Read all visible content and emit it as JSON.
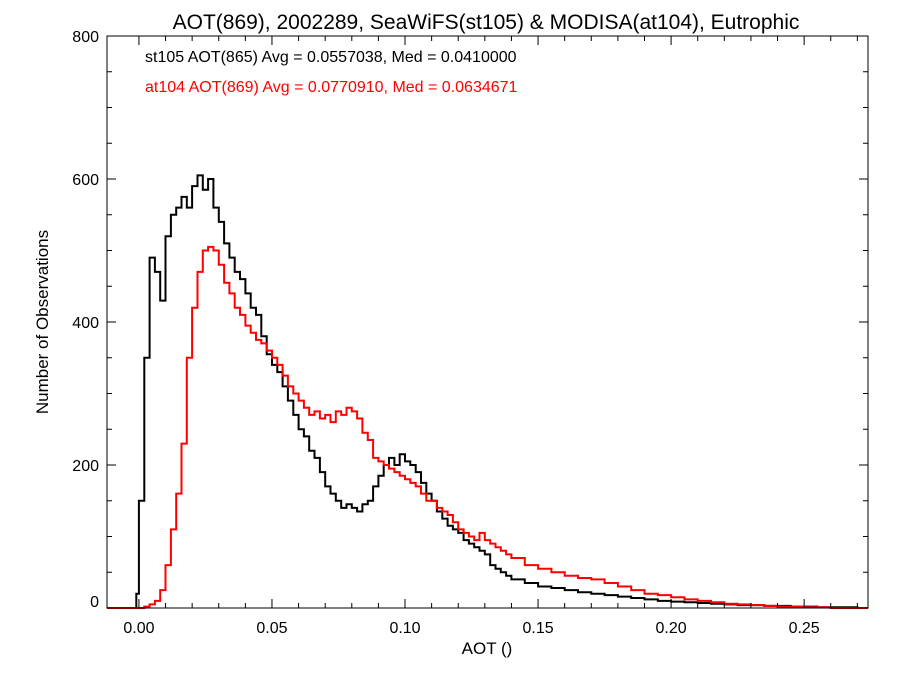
{
  "chart_data": {
    "type": "line",
    "title": "AOT(869), 2002289, SeaWiFS(st105) & MODISA(at104), Eutrophic",
    "xlabel": "AOT ()",
    "ylabel": "Number of Observations",
    "xlim": [
      -0.012,
      0.274
    ],
    "ylim": [
      0,
      800
    ],
    "x_ticks": [
      0.0,
      0.05,
      0.1,
      0.15,
      0.2,
      0.25
    ],
    "x_tick_labels": [
      "0.00",
      "0.05",
      "0.10",
      "0.15",
      "0.20",
      "0.25"
    ],
    "y_ticks": [
      0,
      200,
      400,
      600,
      800
    ],
    "y_tick_labels": [
      "0",
      "200",
      "400",
      "600",
      "800"
    ],
    "grid": false,
    "legend_placement": "top-left",
    "step_style": "histogram",
    "series": [
      {
        "name": "st105 AOT(865) Avg = 0.0557038, Med = 0.0410000",
        "color": "#000000",
        "x": [
          -0.012,
          -0.001,
          0.0,
          0.002,
          0.004,
          0.006,
          0.008,
          0.01,
          0.012,
          0.014,
          0.016,
          0.018,
          0.02,
          0.022,
          0.024,
          0.026,
          0.028,
          0.03,
          0.032,
          0.034,
          0.036,
          0.038,
          0.04,
          0.042,
          0.044,
          0.046,
          0.048,
          0.05,
          0.052,
          0.054,
          0.056,
          0.058,
          0.06,
          0.062,
          0.064,
          0.066,
          0.068,
          0.07,
          0.072,
          0.074,
          0.076,
          0.078,
          0.08,
          0.082,
          0.084,
          0.086,
          0.088,
          0.09,
          0.092,
          0.094,
          0.096,
          0.098,
          0.1,
          0.102,
          0.104,
          0.106,
          0.108,
          0.11,
          0.112,
          0.114,
          0.116,
          0.118,
          0.12,
          0.122,
          0.124,
          0.126,
          0.128,
          0.13,
          0.132,
          0.134,
          0.136,
          0.138,
          0.14,
          0.145,
          0.15,
          0.155,
          0.16,
          0.165,
          0.17,
          0.175,
          0.18,
          0.185,
          0.19,
          0.195,
          0.2,
          0.205,
          0.21,
          0.215,
          0.22,
          0.225,
          0.23,
          0.235,
          0.24,
          0.245,
          0.25,
          0.255,
          0.26,
          0.265,
          0.27,
          0.274
        ],
        "y": [
          0,
          20,
          150,
          350,
          490,
          470,
          430,
          520,
          550,
          560,
          575,
          560,
          590,
          605,
          585,
          600,
          560,
          540,
          510,
          490,
          470,
          460,
          440,
          420,
          410,
          380,
          355,
          340,
          330,
          310,
          290,
          270,
          250,
          240,
          220,
          210,
          190,
          170,
          160,
          150,
          140,
          145,
          140,
          135,
          145,
          150,
          170,
          185,
          200,
          210,
          200,
          215,
          205,
          200,
          190,
          175,
          160,
          150,
          135,
          125,
          115,
          110,
          105,
          95,
          90,
          85,
          80,
          75,
          60,
          55,
          50,
          45,
          40,
          35,
          30,
          28,
          25,
          22,
          20,
          18,
          16,
          14,
          12,
          10,
          9,
          8,
          7,
          6,
          5,
          4,
          4,
          3,
          3,
          2,
          2,
          1,
          1,
          1,
          0,
          0
        ]
      },
      {
        "name": "at104 AOT(869) Avg = 0.0770910, Med = 0.0634671",
        "color": "#ff0000",
        "x": [
          -0.012,
          -0.001,
          0.002,
          0.004,
          0.006,
          0.008,
          0.01,
          0.012,
          0.014,
          0.016,
          0.018,
          0.02,
          0.022,
          0.024,
          0.026,
          0.028,
          0.03,
          0.032,
          0.034,
          0.036,
          0.038,
          0.04,
          0.042,
          0.044,
          0.046,
          0.048,
          0.05,
          0.052,
          0.054,
          0.056,
          0.058,
          0.06,
          0.062,
          0.064,
          0.066,
          0.068,
          0.07,
          0.072,
          0.074,
          0.076,
          0.078,
          0.08,
          0.082,
          0.084,
          0.086,
          0.088,
          0.09,
          0.092,
          0.094,
          0.096,
          0.098,
          0.1,
          0.102,
          0.104,
          0.106,
          0.108,
          0.11,
          0.112,
          0.114,
          0.116,
          0.118,
          0.12,
          0.122,
          0.124,
          0.126,
          0.128,
          0.13,
          0.132,
          0.134,
          0.136,
          0.138,
          0.14,
          0.145,
          0.15,
          0.155,
          0.16,
          0.165,
          0.17,
          0.175,
          0.18,
          0.185,
          0.19,
          0.195,
          0.2,
          0.205,
          0.21,
          0.215,
          0.22,
          0.225,
          0.23,
          0.235,
          0.24,
          0.245,
          0.25,
          0.255,
          0.26,
          0.265,
          0.27,
          0.274
        ],
        "y": [
          0,
          0,
          2,
          5,
          10,
          25,
          60,
          110,
          160,
          230,
          350,
          420,
          470,
          500,
          505,
          500,
          480,
          455,
          440,
          420,
          410,
          395,
          385,
          375,
          370,
          360,
          350,
          340,
          325,
          310,
          300,
          290,
          280,
          270,
          275,
          265,
          270,
          260,
          275,
          270,
          280,
          275,
          265,
          245,
          235,
          210,
          205,
          200,
          195,
          190,
          185,
          180,
          175,
          170,
          160,
          150,
          150,
          140,
          135,
          130,
          120,
          110,
          105,
          100,
          95,
          105,
          95,
          90,
          85,
          80,
          75,
          70,
          60,
          55,
          50,
          45,
          42,
          40,
          35,
          30,
          25,
          20,
          18,
          15,
          12,
          10,
          8,
          6,
          5,
          4,
          3,
          2,
          2,
          1,
          1,
          0,
          0,
          0,
          0
        ]
      }
    ]
  }
}
